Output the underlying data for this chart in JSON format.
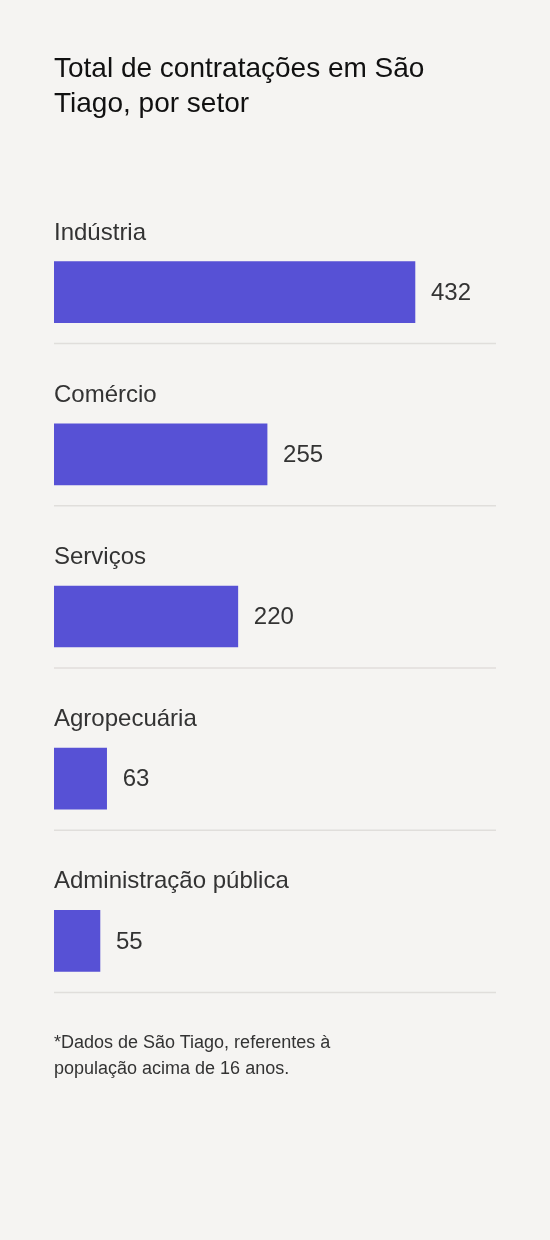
{
  "chart_data": {
    "type": "bar",
    "orientation": "horizontal",
    "title": "Total de contratações em São Tiago, por setor",
    "categories": [
      "Indústria",
      "Comércio",
      "Serviços",
      "Agropecuária",
      "Administração pública"
    ],
    "values": [
      432,
      255,
      220,
      63,
      55
    ],
    "color": "#5751d5",
    "data_labels": true,
    "grid": "y",
    "tick_labels": "y",
    "annotations": [
      "*Dados de São Tiago, referentes à população acima de 16 anos."
    ]
  }
}
